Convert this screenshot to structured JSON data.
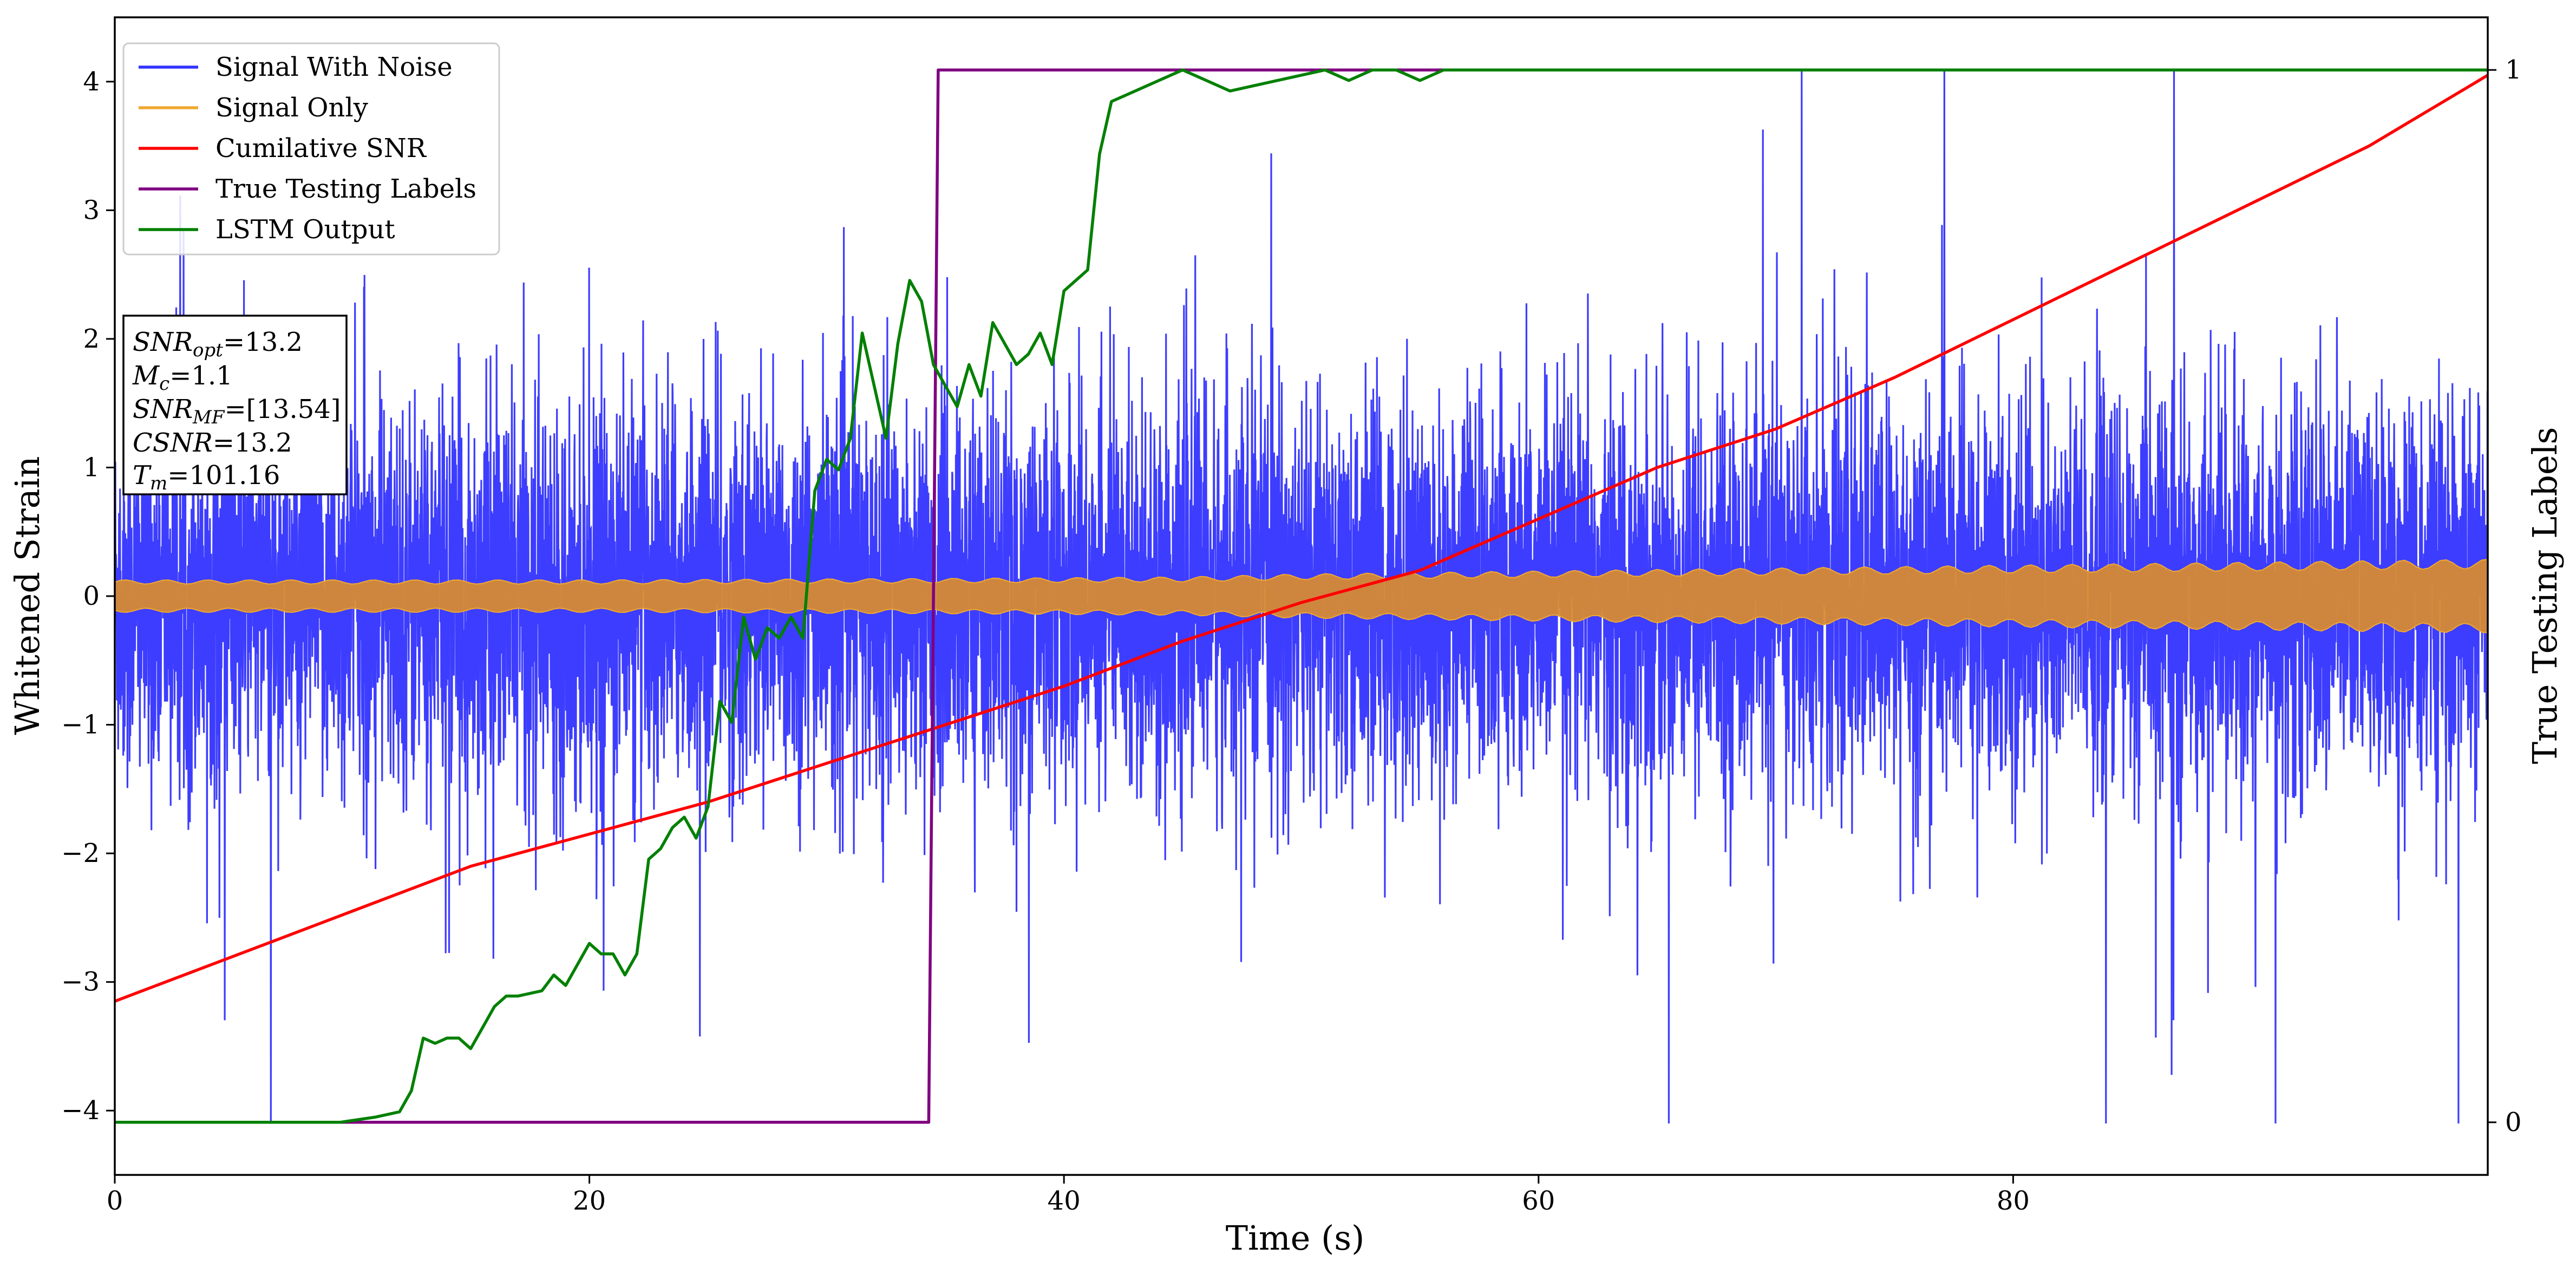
{
  "chart_data": {
    "type": "line",
    "xlabel": "Time (s)",
    "ylabel": "Whitened Strain",
    "y2label": "True Testing Labels",
    "xlim": [
      0,
      100
    ],
    "ylim": [
      -4.5,
      4.5
    ],
    "y2lim": [
      -0.05,
      1.05
    ],
    "xticks": [
      0,
      20,
      40,
      60,
      80
    ],
    "yticks": [
      -4,
      -3,
      -2,
      -1,
      0,
      1,
      2,
      3,
      4
    ],
    "y2ticks": [
      0,
      1
    ],
    "legend_position": "top-left",
    "grid": false,
    "series": [
      {
        "name": "Signal With Noise",
        "color": "#3333ff",
        "description_axis": "left",
        "amplitude_typical": 2.3,
        "amplitude_max": 4.1
      },
      {
        "name": "Signal Only",
        "color": "#f0a830",
        "axis": "left",
        "envelope": {
          "x": [
            0,
            20,
            35,
            45,
            50,
            55,
            60,
            65,
            70,
            80,
            90,
            100
          ],
          "y": [
            0.11,
            0.11,
            0.12,
            0.13,
            0.15,
            0.16,
            0.17,
            0.18,
            0.19,
            0.21,
            0.23,
            0.25
          ]
        }
      },
      {
        "name": "Cumilative SNR",
        "color": "#ff0000",
        "axis": "left",
        "x": [
          0,
          5,
          10,
          15,
          20,
          25,
          30,
          35,
          40,
          45,
          50,
          55,
          60,
          65,
          70,
          75,
          80,
          85,
          90,
          95,
          100
        ],
        "y": [
          -3.15,
          -2.8,
          -2.45,
          -2.1,
          -1.85,
          -1.6,
          -1.3,
          -1.0,
          -0.7,
          -0.35,
          -0.05,
          0.2,
          0.6,
          1.0,
          1.3,
          1.7,
          2.15,
          2.6,
          3.05,
          3.5,
          4.05
        ]
      },
      {
        "name": "True Testing Labels",
        "color": "#800080",
        "axis": "right",
        "x": [
          0,
          34.3,
          34.7,
          100
        ],
        "y": [
          0,
          0,
          1,
          1
        ]
      },
      {
        "name": "LSTM Output",
        "color": "#008000",
        "axis": "right",
        "x": [
          0,
          9.5,
          11,
          12,
          12.5,
          13,
          13.5,
          14,
          14.5,
          15,
          16,
          16.5,
          17,
          18,
          18.5,
          19,
          19.5,
          20,
          20.5,
          21,
          21.5,
          22,
          22.5,
          23,
          23.5,
          24,
          24.5,
          25,
          25.5,
          26,
          26.5,
          27,
          27.5,
          28,
          28.5,
          29,
          29.5,
          30,
          30.5,
          31,
          31.5,
          32,
          32.5,
          33,
          33.5,
          34,
          34.5,
          35,
          35.5,
          36,
          36.5,
          37,
          37.5,
          38,
          38.5,
          39,
          39.5,
          40,
          40.5,
          41,
          41.5,
          42,
          43,
          44,
          45,
          46,
          47,
          48,
          49,
          50,
          51,
          52,
          53,
          54,
          55,
          56,
          58,
          60,
          62,
          64,
          66,
          68,
          70,
          80,
          90,
          100
        ],
        "y": [
          0,
          0,
          0.005,
          0.01,
          0.03,
          0.08,
          0.075,
          0.08,
          0.08,
          0.07,
          0.11,
          0.12,
          0.12,
          0.125,
          0.14,
          0.13,
          0.15,
          0.17,
          0.16,
          0.16,
          0.14,
          0.16,
          0.25,
          0.26,
          0.28,
          0.29,
          0.27,
          0.3,
          0.4,
          0.38,
          0.48,
          0.44,
          0.47,
          0.46,
          0.48,
          0.46,
          0.6,
          0.63,
          0.62,
          0.65,
          0.75,
          0.7,
          0.65,
          0.74,
          0.8,
          0.78,
          0.72,
          0.7,
          0.68,
          0.72,
          0.69,
          0.76,
          0.74,
          0.72,
          0.73,
          0.75,
          0.72,
          0.79,
          0.8,
          0.81,
          0.92,
          0.97,
          0.98,
          0.99,
          1.0,
          0.99,
          0.98,
          0.985,
          0.99,
          0.995,
          1.0,
          0.99,
          1.0,
          1.0,
          0.99,
          1.0,
          1.0,
          1.0,
          1.0,
          1.0,
          1.0,
          1.0,
          1.0,
          1.0,
          1.0,
          1.0
        ]
      }
    ],
    "legend": [
      "Signal With Noise",
      "Signal Only",
      "Cumilative SNR",
      "True Testing Labels",
      "LSTM Output"
    ],
    "info_box": {
      "snr_opt": {
        "main": "SNR",
        "sub": "opt",
        "value": "=13.2"
      },
      "mc": {
        "main": "M",
        "sub": "c",
        "value": "=1.1"
      },
      "snr_mf": {
        "main": "SNR",
        "sub": "MF",
        "value": "=[13.54]"
      },
      "csnr": {
        "main": "CSNR",
        "value": "=13.2"
      },
      "tm": {
        "main": "T",
        "sub": "m",
        "value": "=101.16"
      }
    }
  }
}
